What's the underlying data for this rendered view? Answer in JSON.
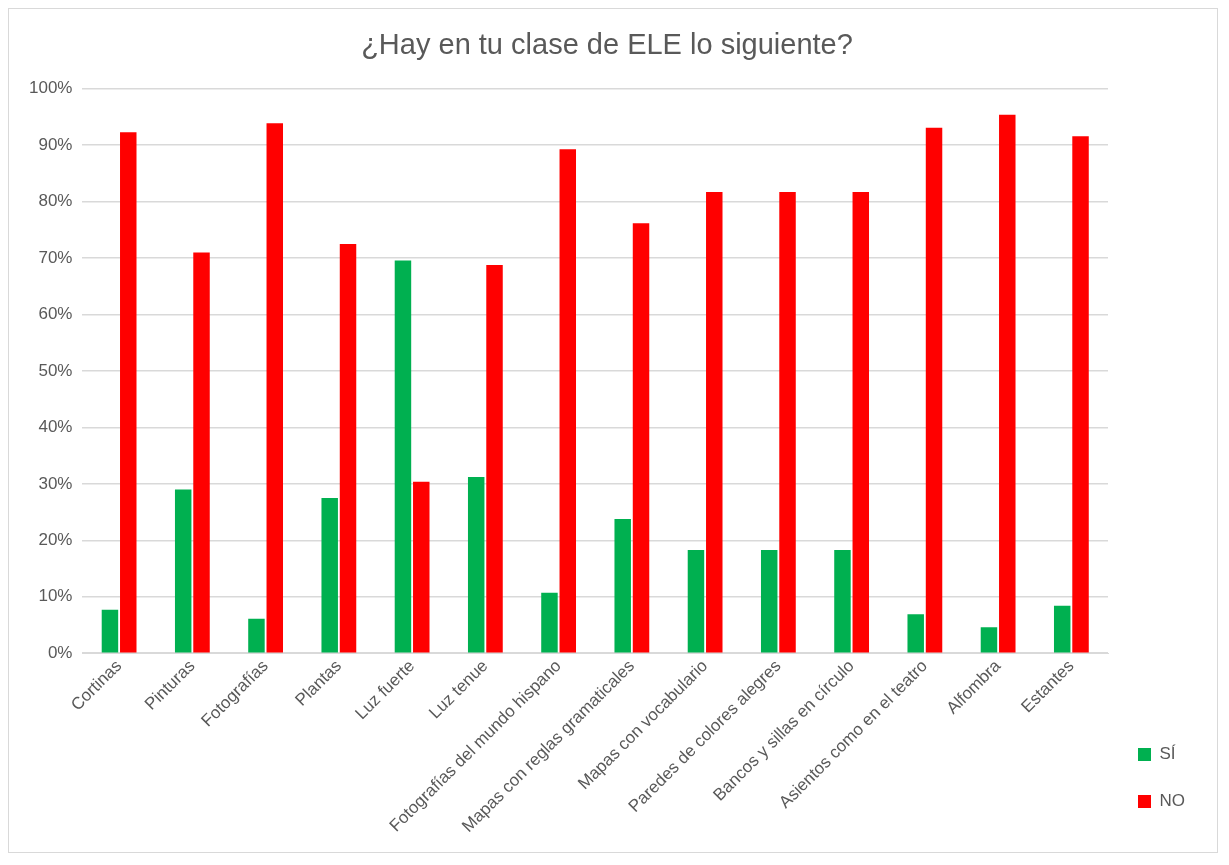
{
  "chart_data": {
    "type": "bar",
    "title": "¿Hay en tu clase de ELE lo siguiente?",
    "categories": [
      "Cortinas",
      "Pinturas",
      "Fotografías",
      "Plantas",
      "Luz fuerte",
      "Luz tenue",
      "Fotografías del mundo hispano",
      "Mapas con reglas gramaticales",
      "Mapas con vocabulario",
      "Paredes de colores alegres",
      "Bancos y sillas en círculo",
      "Asientos como en el teatro",
      "Alfombra",
      "Estantes"
    ],
    "series": [
      {
        "name": "SÍ",
        "color": "#00b050",
        "values": [
          7.7,
          29,
          6.1,
          27.5,
          69.6,
          31.2,
          10.7,
          23.8,
          18.3,
          18.3,
          18.3,
          6.9,
          4.6,
          8.4
        ]
      },
      {
        "name": "NO",
        "color": "#ff0000",
        "values": [
          92.3,
          71,
          93.9,
          72.5,
          30.4,
          68.8,
          89.3,
          76.2,
          81.7,
          81.7,
          81.7,
          93.1,
          95.4,
          91.6
        ]
      }
    ],
    "ylim": [
      0,
      100
    ],
    "yticks": [
      {
        "value": 0,
        "label": "0%"
      },
      {
        "value": 10,
        "label": "10%"
      },
      {
        "value": 20,
        "label": "20%"
      },
      {
        "value": 30,
        "label": "30%"
      },
      {
        "value": 40,
        "label": "40%"
      },
      {
        "value": 50,
        "label": "50%"
      },
      {
        "value": 60,
        "label": "60%"
      },
      {
        "value": 70,
        "label": "70%"
      },
      {
        "value": 80,
        "label": "80%"
      },
      {
        "value": 90,
        "label": "90%"
      },
      {
        "value": 100,
        "label": "100%"
      }
    ],
    "grid": "y",
    "legend": "bottom right"
  }
}
